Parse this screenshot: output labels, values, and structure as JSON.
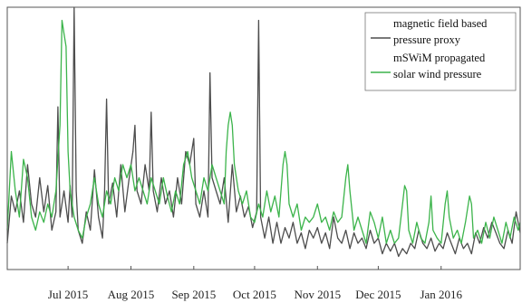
{
  "chart_data": {
    "type": "line",
    "title": "",
    "xlabel": "",
    "ylabel": "",
    "x_ticks": [
      "Jul 2015",
      "Aug 2015",
      "Sep 2015",
      "Oct 2015",
      "Nov 2015",
      "Dec 2015",
      "Jan 2016"
    ],
    "x_range": [
      "2015-06-01",
      "2016-02-09"
    ],
    "y_range": [
      0,
      1
    ],
    "y_ticks_shown": false,
    "grid": false,
    "legend": {
      "placement": "top-right",
      "entries": [
        {
          "series": 0,
          "lines": [
            "magnetic field based",
            "pressure proxy"
          ]
        },
        {
          "series": 1,
          "lines": [
            "mSWiM propagated",
            "solar wind pressure"
          ]
        }
      ]
    },
    "series": [
      {
        "name": "magnetic field based pressure proxy",
        "color": "#4d4d4d",
        "points": [
          [
            "2015-06-01",
            0.1
          ],
          [
            "2015-06-03",
            0.28
          ],
          [
            "2015-06-05",
            0.22
          ],
          [
            "2015-06-07",
            0.3
          ],
          [
            "2015-06-09",
            0.18
          ],
          [
            "2015-06-11",
            0.4
          ],
          [
            "2015-06-13",
            0.25
          ],
          [
            "2015-06-15",
            0.2
          ],
          [
            "2015-06-17",
            0.35
          ],
          [
            "2015-06-19",
            0.22
          ],
          [
            "2015-06-21",
            0.32
          ],
          [
            "2015-06-23",
            0.15
          ],
          [
            "2015-06-25",
            0.22
          ],
          [
            "2015-06-26",
            0.62
          ],
          [
            "2015-06-27",
            0.2
          ],
          [
            "2015-06-29",
            0.3
          ],
          [
            "2015-07-01",
            0.18
          ],
          [
            "2015-07-02",
            0.32
          ],
          [
            "2015-07-03",
            0.2
          ],
          [
            "2015-07-04",
            1.0
          ],
          [
            "2015-07-05",
            0.3
          ],
          [
            "2015-07-06",
            0.15
          ],
          [
            "2015-07-08",
            0.1
          ],
          [
            "2015-07-10",
            0.22
          ],
          [
            "2015-07-12",
            0.15
          ],
          [
            "2015-07-14",
            0.38
          ],
          [
            "2015-07-16",
            0.2
          ],
          [
            "2015-07-18",
            0.12
          ],
          [
            "2015-07-19",
            0.3
          ],
          [
            "2015-07-20",
            0.65
          ],
          [
            "2015-07-21",
            0.25
          ],
          [
            "2015-07-23",
            0.33
          ],
          [
            "2015-07-25",
            0.2
          ],
          [
            "2015-07-27",
            0.4
          ],
          [
            "2015-07-29",
            0.22
          ],
          [
            "2015-07-31",
            0.34
          ],
          [
            "2015-08-02",
            0.45
          ],
          [
            "2015-08-03",
            0.55
          ],
          [
            "2015-08-04",
            0.3
          ],
          [
            "2015-08-06",
            0.25
          ],
          [
            "2015-08-08",
            0.4
          ],
          [
            "2015-08-10",
            0.3
          ],
          [
            "2015-08-11",
            0.6
          ],
          [
            "2015-08-12",
            0.3
          ],
          [
            "2015-08-14",
            0.22
          ],
          [
            "2015-08-16",
            0.35
          ],
          [
            "2015-08-18",
            0.25
          ],
          [
            "2015-08-20",
            0.3
          ],
          [
            "2015-08-22",
            0.2
          ],
          [
            "2015-08-24",
            0.35
          ],
          [
            "2015-08-26",
            0.25
          ],
          [
            "2015-08-28",
            0.45
          ],
          [
            "2015-08-30",
            0.4
          ],
          [
            "2015-09-01",
            0.5
          ],
          [
            "2015-09-02",
            0.25
          ],
          [
            "2015-09-04",
            0.2
          ],
          [
            "2015-09-06",
            0.3
          ],
          [
            "2015-09-08",
            0.2
          ],
          [
            "2015-09-09",
            0.75
          ],
          [
            "2015-09-10",
            0.35
          ],
          [
            "2015-09-12",
            0.3
          ],
          [
            "2015-09-14",
            0.25
          ],
          [
            "2015-09-16",
            0.35
          ],
          [
            "2015-09-18",
            0.18
          ],
          [
            "2015-09-20",
            0.4
          ],
          [
            "2015-09-22",
            0.22
          ],
          [
            "2015-09-24",
            0.28
          ],
          [
            "2015-09-26",
            0.2
          ],
          [
            "2015-09-28",
            0.24
          ],
          [
            "2015-09-30",
            0.16
          ],
          [
            "2015-10-02",
            0.22
          ],
          [
            "2015-10-03",
            0.95
          ],
          [
            "2015-10-04",
            0.2
          ],
          [
            "2015-10-06",
            0.12
          ],
          [
            "2015-10-08",
            0.2
          ],
          [
            "2015-10-10",
            0.1
          ],
          [
            "2015-10-12",
            0.18
          ],
          [
            "2015-10-14",
            0.1
          ],
          [
            "2015-10-16",
            0.16
          ],
          [
            "2015-10-18",
            0.12
          ],
          [
            "2015-10-20",
            0.18
          ],
          [
            "2015-10-22",
            0.1
          ],
          [
            "2015-10-24",
            0.14
          ],
          [
            "2015-10-26",
            0.08
          ],
          [
            "2015-10-28",
            0.15
          ],
          [
            "2015-10-30",
            0.12
          ],
          [
            "2015-11-01",
            0.16
          ],
          [
            "2015-11-03",
            0.1
          ],
          [
            "2015-11-05",
            0.14
          ],
          [
            "2015-11-07",
            0.08
          ],
          [
            "2015-11-09",
            0.2
          ],
          [
            "2015-11-11",
            0.12
          ],
          [
            "2015-11-13",
            0.1
          ],
          [
            "2015-11-15",
            0.15
          ],
          [
            "2015-11-17",
            0.08
          ],
          [
            "2015-11-19",
            0.14
          ],
          [
            "2015-11-21",
            0.1
          ],
          [
            "2015-11-23",
            0.12
          ],
          [
            "2015-11-25",
            0.08
          ],
          [
            "2015-11-27",
            0.15
          ],
          [
            "2015-11-29",
            0.1
          ],
          [
            "2015-12-01",
            0.12
          ],
          [
            "2015-12-03",
            0.06
          ],
          [
            "2015-12-05",
            0.1
          ],
          [
            "2015-12-07",
            0.07
          ],
          [
            "2015-12-09",
            0.1
          ],
          [
            "2015-12-11",
            0.05
          ],
          [
            "2015-12-13",
            0.08
          ],
          [
            "2015-12-15",
            0.06
          ],
          [
            "2015-12-17",
            0.1
          ],
          [
            "2015-12-19",
            0.08
          ],
          [
            "2015-12-21",
            0.15
          ],
          [
            "2015-12-23",
            0.1
          ],
          [
            "2015-12-25",
            0.08
          ],
          [
            "2015-12-27",
            0.12
          ],
          [
            "2015-12-29",
            0.07
          ],
          [
            "2015-12-31",
            0.1
          ],
          [
            "2016-01-02",
            0.08
          ],
          [
            "2016-01-04",
            0.14
          ],
          [
            "2016-01-06",
            0.1
          ],
          [
            "2016-01-08",
            0.06
          ],
          [
            "2016-01-10",
            0.12
          ],
          [
            "2016-01-12",
            0.08
          ],
          [
            "2016-01-14",
            0.1
          ],
          [
            "2016-01-16",
            0.06
          ],
          [
            "2016-01-18",
            0.14
          ],
          [
            "2016-01-20",
            0.1
          ],
          [
            "2016-01-22",
            0.16
          ],
          [
            "2016-01-24",
            0.12
          ],
          [
            "2016-01-26",
            0.18
          ],
          [
            "2016-01-28",
            0.14
          ],
          [
            "2016-01-30",
            0.1
          ],
          [
            "2016-02-01",
            0.08
          ],
          [
            "2016-02-03",
            0.15
          ],
          [
            "2016-02-05",
            0.1
          ],
          [
            "2016-02-07",
            0.22
          ],
          [
            "2016-02-09",
            0.14
          ]
        ]
      },
      {
        "name": "mSWiM propagated solar wind pressure",
        "color": "#3cb44b",
        "points": [
          [
            "2015-06-01",
            0.15
          ],
          [
            "2015-06-03",
            0.45
          ],
          [
            "2015-06-05",
            0.3
          ],
          [
            "2015-06-07",
            0.2
          ],
          [
            "2015-06-09",
            0.42
          ],
          [
            "2015-06-11",
            0.35
          ],
          [
            "2015-06-13",
            0.2
          ],
          [
            "2015-06-15",
            0.15
          ],
          [
            "2015-06-17",
            0.22
          ],
          [
            "2015-06-19",
            0.18
          ],
          [
            "2015-06-21",
            0.25
          ],
          [
            "2015-06-23",
            0.2
          ],
          [
            "2015-06-25",
            0.3
          ],
          [
            "2015-06-27",
            0.55
          ],
          [
            "2015-06-28",
            0.95
          ],
          [
            "2015-06-29",
            0.9
          ],
          [
            "2015-06-30",
            0.85
          ],
          [
            "2015-07-01",
            0.45
          ],
          [
            "2015-07-02",
            0.3
          ],
          [
            "2015-07-04",
            0.2
          ],
          [
            "2015-07-06",
            0.15
          ],
          [
            "2015-07-08",
            0.12
          ],
          [
            "2015-07-10",
            0.2
          ],
          [
            "2015-07-12",
            0.25
          ],
          [
            "2015-07-14",
            0.35
          ],
          [
            "2015-07-16",
            0.25
          ],
          [
            "2015-07-18",
            0.2
          ],
          [
            "2015-07-20",
            0.3
          ],
          [
            "2015-07-22",
            0.25
          ],
          [
            "2015-07-24",
            0.35
          ],
          [
            "2015-07-26",
            0.3
          ],
          [
            "2015-07-28",
            0.4
          ],
          [
            "2015-07-30",
            0.35
          ],
          [
            "2015-08-01",
            0.4
          ],
          [
            "2015-08-03",
            0.3
          ],
          [
            "2015-08-05",
            0.35
          ],
          [
            "2015-08-07",
            0.3
          ],
          [
            "2015-08-09",
            0.25
          ],
          [
            "2015-08-11",
            0.35
          ],
          [
            "2015-08-13",
            0.3
          ],
          [
            "2015-08-15",
            0.25
          ],
          [
            "2015-08-17",
            0.35
          ],
          [
            "2015-08-19",
            0.28
          ],
          [
            "2015-08-21",
            0.22
          ],
          [
            "2015-08-23",
            0.3
          ],
          [
            "2015-08-25",
            0.25
          ],
          [
            "2015-08-27",
            0.4
          ],
          [
            "2015-08-29",
            0.45
          ],
          [
            "2015-08-31",
            0.35
          ],
          [
            "2015-09-02",
            0.3
          ],
          [
            "2015-09-04",
            0.25
          ],
          [
            "2015-09-06",
            0.35
          ],
          [
            "2015-09-08",
            0.3
          ],
          [
            "2015-09-10",
            0.4
          ],
          [
            "2015-09-12",
            0.35
          ],
          [
            "2015-09-14",
            0.3
          ],
          [
            "2015-09-16",
            0.25
          ],
          [
            "2015-09-17",
            0.45
          ],
          [
            "2015-09-18",
            0.55
          ],
          [
            "2015-09-19",
            0.6
          ],
          [
            "2015-09-20",
            0.55
          ],
          [
            "2015-09-21",
            0.4
          ],
          [
            "2015-09-23",
            0.3
          ],
          [
            "2015-09-25",
            0.25
          ],
          [
            "2015-09-27",
            0.3
          ],
          [
            "2015-09-29",
            0.2
          ],
          [
            "2015-10-01",
            0.18
          ],
          [
            "2015-10-03",
            0.25
          ],
          [
            "2015-10-05",
            0.2
          ],
          [
            "2015-10-07",
            0.3
          ],
          [
            "2015-10-09",
            0.22
          ],
          [
            "2015-10-11",
            0.28
          ],
          [
            "2015-10-13",
            0.2
          ],
          [
            "2015-10-15",
            0.4
          ],
          [
            "2015-10-16",
            0.45
          ],
          [
            "2015-10-17",
            0.4
          ],
          [
            "2015-10-18",
            0.25
          ],
          [
            "2015-10-20",
            0.2
          ],
          [
            "2015-10-22",
            0.25
          ],
          [
            "2015-10-24",
            0.15
          ],
          [
            "2015-10-26",
            0.2
          ],
          [
            "2015-10-28",
            0.18
          ],
          [
            "2015-10-30",
            0.2
          ],
          [
            "2015-11-01",
            0.25
          ],
          [
            "2015-11-03",
            0.18
          ],
          [
            "2015-11-05",
            0.2
          ],
          [
            "2015-11-07",
            0.15
          ],
          [
            "2015-11-09",
            0.22
          ],
          [
            "2015-11-11",
            0.18
          ],
          [
            "2015-11-13",
            0.2
          ],
          [
            "2015-11-15",
            0.35
          ],
          [
            "2015-11-16",
            0.4
          ],
          [
            "2015-11-17",
            0.3
          ],
          [
            "2015-11-19",
            0.15
          ],
          [
            "2015-11-21",
            0.2
          ],
          [
            "2015-11-23",
            0.15
          ],
          [
            "2015-11-25",
            0.1
          ],
          [
            "2015-11-27",
            0.22
          ],
          [
            "2015-11-29",
            0.18
          ],
          [
            "2015-12-01",
            0.12
          ],
          [
            "2015-12-03",
            0.2
          ],
          [
            "2015-12-05",
            0.1
          ],
          [
            "2015-12-07",
            0.15
          ],
          [
            "2015-12-09",
            0.1
          ],
          [
            "2015-12-11",
            0.12
          ],
          [
            "2015-12-13",
            0.25
          ],
          [
            "2015-12-14",
            0.32
          ],
          [
            "2015-12-15",
            0.3
          ],
          [
            "2015-12-16",
            0.15
          ],
          [
            "2015-12-18",
            0.1
          ],
          [
            "2015-12-20",
            0.18
          ],
          [
            "2015-12-22",
            0.12
          ],
          [
            "2015-12-24",
            0.1
          ],
          [
            "2015-12-26",
            0.18
          ],
          [
            "2015-12-27",
            0.28
          ],
          [
            "2015-12-28",
            0.15
          ],
          [
            "2015-12-30",
            0.12
          ],
          [
            "2016-01-01",
            0.1
          ],
          [
            "2016-01-03",
            0.25
          ],
          [
            "2016-01-04",
            0.3
          ],
          [
            "2016-01-05",
            0.2
          ],
          [
            "2016-01-07",
            0.12
          ],
          [
            "2016-01-09",
            0.15
          ],
          [
            "2016-01-11",
            0.1
          ],
          [
            "2016-01-13",
            0.18
          ],
          [
            "2016-01-15",
            0.28
          ],
          [
            "2016-01-16",
            0.25
          ],
          [
            "2016-01-17",
            0.12
          ],
          [
            "2016-01-19",
            0.15
          ],
          [
            "2016-01-21",
            0.1
          ],
          [
            "2016-01-23",
            0.18
          ],
          [
            "2016-01-25",
            0.12
          ],
          [
            "2016-01-27",
            0.2
          ],
          [
            "2016-01-29",
            0.15
          ],
          [
            "2016-01-31",
            0.1
          ],
          [
            "2016-02-02",
            0.18
          ],
          [
            "2016-02-04",
            0.12
          ],
          [
            "2016-02-06",
            0.2
          ],
          [
            "2016-02-08",
            0.15
          ],
          [
            "2016-02-09",
            0.18
          ]
        ]
      }
    ]
  }
}
